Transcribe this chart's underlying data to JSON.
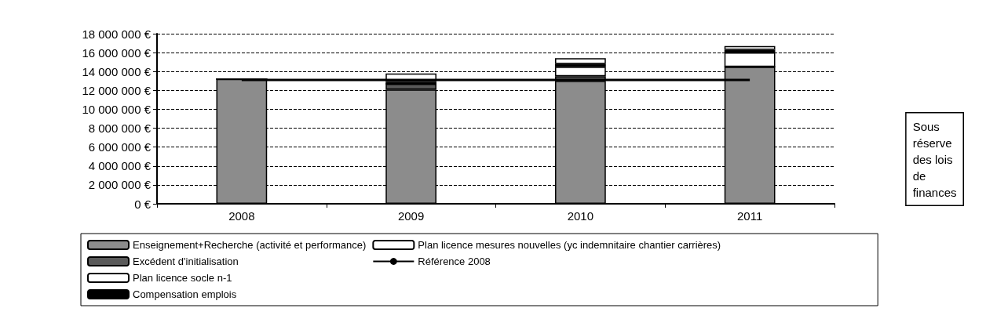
{
  "chart_data": {
    "type": "bar",
    "stacked": true,
    "categories": [
      "2008",
      "2009",
      "2010",
      "2011"
    ],
    "series": [
      {
        "name": "Enseignement+Recherche (activité et performance)",
        "color": "#8c8c8c",
        "values": [
          13200000,
          12100000,
          13000000,
          14500000
        ]
      },
      {
        "name": "Excédent d'initialisation",
        "color": "#5a5a5a",
        "values": [
          0,
          600000,
          500000,
          0
        ]
      },
      {
        "name": "Plan licence socle n-1",
        "color": "#ffffff",
        "values": [
          0,
          0,
          1000000,
          1500000
        ]
      },
      {
        "name": "Compensation emplois",
        "color": "#000000",
        "values": [
          0,
          200000,
          300000,
          300000
        ]
      },
      {
        "name": "Plan licence mesures nouvelles (yc indemnitaire chantier carrières)",
        "color": "#ffffff",
        "values": [
          0,
          900000,
          600000,
          400000
        ]
      },
      {
        "name": "Référence 2008",
        "type": "line",
        "color": "#000000",
        "values": [
          13100000,
          13100000,
          13100000,
          13100000
        ]
      }
    ],
    "ylim": [
      0,
      18000000
    ],
    "yticks": [
      {
        "value": 0,
        "label": "0 €"
      },
      {
        "value": 2000000,
        "label": "2 000 000 €"
      },
      {
        "value": 4000000,
        "label": "4 000 000 €"
      },
      {
        "value": 6000000,
        "label": "6 000 000 €"
      },
      {
        "value": 8000000,
        "label": "8 000 000 €"
      },
      {
        "value": 10000000,
        "label": "10 000 000 €"
      },
      {
        "value": 12000000,
        "label": "12 000 000 €"
      },
      {
        "value": 14000000,
        "label": "14 000 000 €"
      },
      {
        "value": 16000000,
        "label": "16 000 000 €"
      },
      {
        "value": 18000000,
        "label": "18 000 000 €"
      }
    ],
    "grid": "y",
    "legend": "bottom",
    "marker": "none",
    "annotations": [
      "Sous\nréserve\ndes lois\nde\nfinances"
    ]
  }
}
